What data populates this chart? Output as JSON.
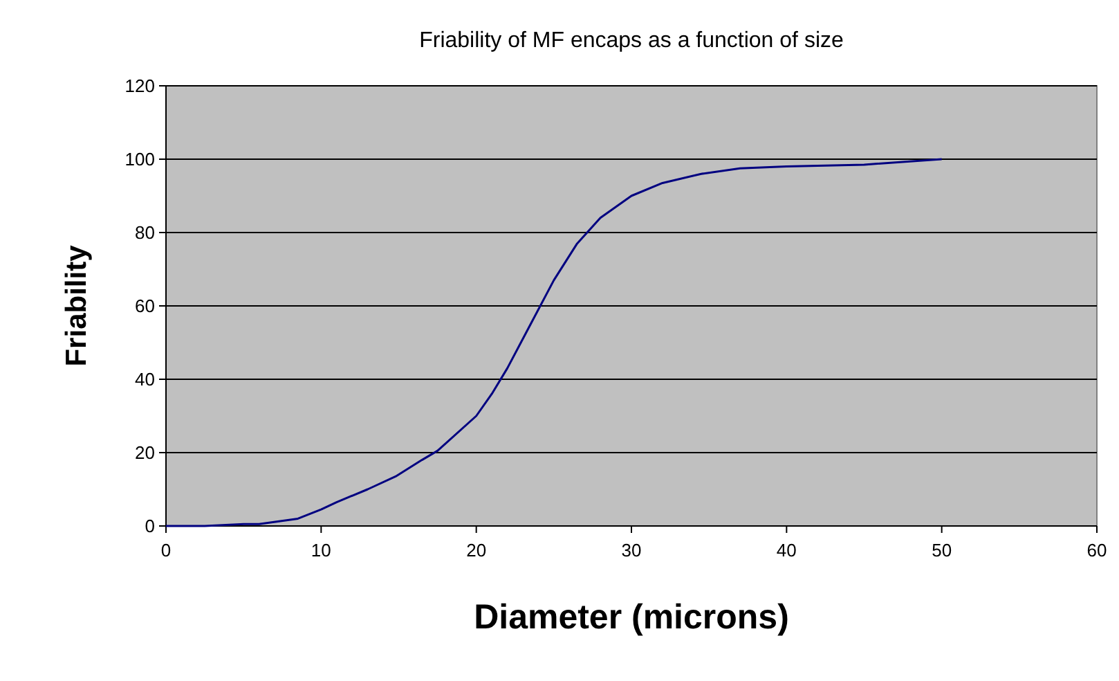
{
  "chart_data": {
    "type": "line",
    "title": "Friability of MF encaps as a function of size",
    "xlabel": "Diameter (microns)",
    "ylabel": "Friability",
    "x": [
      0,
      2.5,
      5,
      6,
      8.5,
      10,
      11,
      13,
      14.8,
      16.5,
      17.5,
      20,
      21,
      22,
      23.5,
      25,
      26.5,
      28,
      30,
      32,
      34.5,
      37,
      40,
      45,
      50
    ],
    "series": [
      {
        "color": "#000080",
        "values": [
          0,
          0,
          0.5,
          0.5,
          2,
          4.5,
          6.5,
          10,
          13.5,
          18,
          20.5,
          30,
          36,
          43,
          55,
          67,
          77,
          84,
          90,
          93.5,
          96,
          97.5,
          98,
          98.5,
          100
        ]
      }
    ],
    "xlim": [
      0,
      60
    ],
    "xticks": [
      0,
      10,
      20,
      30,
      40,
      50,
      60
    ],
    "ylim": [
      0,
      120
    ],
    "yticks": [
      0,
      20,
      40,
      60,
      80,
      100,
      120
    ],
    "grid": "y",
    "marker": "none",
    "line_style": "solid"
  }
}
